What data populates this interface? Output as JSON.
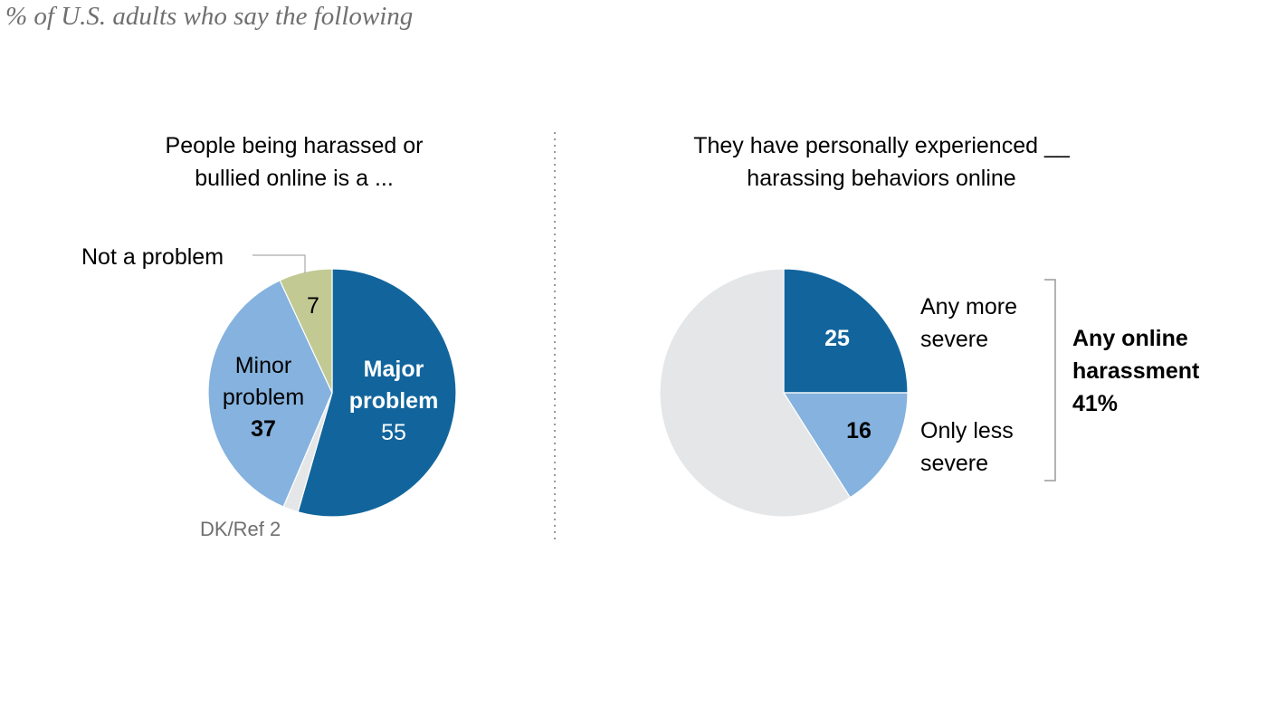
{
  "subtitle": "% of U.S. adults who say the following",
  "colors": {
    "dark_blue": "#12659c",
    "light_blue": "#85b2de",
    "olive": "#c2c993",
    "gray": "#e5e6e8",
    "muted_text": "#6f6f6f",
    "divider": "#9a9a9a"
  },
  "chart_data": [
    {
      "type": "pie",
      "title_lines": [
        "People being harassed or",
        "bullied online is a ..."
      ],
      "slices": [
        {
          "label_lines": [
            "Major",
            "problem"
          ],
          "value": 55,
          "color": "#12659c"
        },
        {
          "label_lines": [
            "DK/Ref"
          ],
          "value": 2,
          "color": "#e5e6e8"
        },
        {
          "label_lines": [
            "Minor",
            "problem"
          ],
          "value": 37,
          "color": "#85b2de"
        },
        {
          "label_lines": [
            "Not a problem"
          ],
          "value": 7,
          "color": "#c2c993"
        }
      ]
    },
    {
      "type": "pie",
      "title_lines": [
        "They have personally experienced __",
        "harassing behaviors online"
      ],
      "slices": [
        {
          "label_lines": [
            "Any more",
            "severe"
          ],
          "value": 25,
          "color": "#12659c"
        },
        {
          "label_lines": [
            "Only less",
            "severe"
          ],
          "value": 16,
          "color": "#85b2de"
        },
        {
          "label_lines": [],
          "value": 59,
          "color": "#e5e6e8"
        }
      ],
      "bracket_label_lines": [
        "Any online",
        "harassment",
        "41%"
      ]
    }
  ]
}
